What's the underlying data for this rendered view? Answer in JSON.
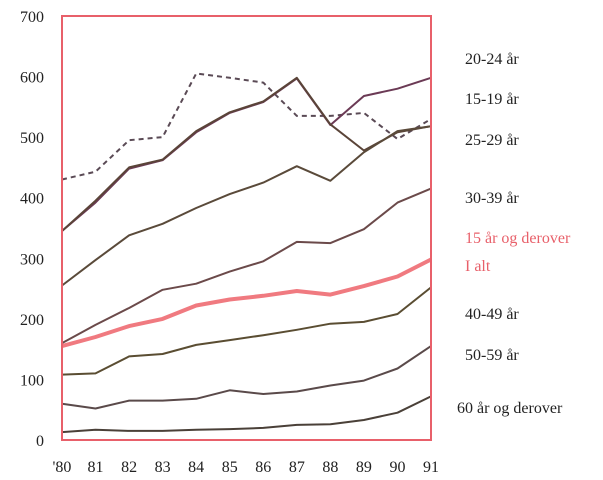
{
  "chart_data": {
    "type": "line",
    "title": "",
    "xlabel": "",
    "ylabel": "",
    "categories": [
      "'80",
      "81",
      "82",
      "83",
      "84",
      "85",
      "86",
      "87",
      "88",
      "89",
      "90",
      "91"
    ],
    "ylim": [
      0,
      700
    ],
    "yticks": [
      0,
      100,
      200,
      300,
      400,
      500,
      600,
      700
    ],
    "grid": false,
    "frame_color": "#e8606a",
    "series": [
      {
        "name": "20-24 år",
        "color": "#5a4a55",
        "dashed": true,
        "values": [
          430,
          443,
          495,
          500,
          605,
          598,
          590,
          535,
          535,
          540,
          497,
          530
        ]
      },
      {
        "name": "15-19 år",
        "color": "#6b3a55",
        "dashed": false,
        "values": [
          345,
          392,
          448,
          462,
          508,
          540,
          558,
          597,
          520,
          568,
          580,
          598
        ]
      },
      {
        "name": "25-29 år",
        "color": "#5a4438",
        "dashed": false,
        "values": [
          345,
          395,
          450,
          463,
          510,
          541,
          559,
          598,
          521,
          478,
          508,
          518
        ]
      },
      {
        "name": "30-39 år",
        "color": "#5a4a3a",
        "dashed": false,
        "values": [
          255,
          297,
          338,
          357,
          383,
          406,
          425,
          452,
          428,
          475,
          510,
          518
        ]
      },
      {
        "name": "15 år og derover",
        "color": "#6b4a4a",
        "dashed": false,
        "values": [
          160,
          190,
          218,
          248,
          258,
          278,
          295,
          327,
          325,
          348,
          392,
          415
        ]
      },
      {
        "name": "I alt",
        "color": "#f07a80",
        "dashed": false,
        "highlight": true,
        "values": [
          155,
          170,
          188,
          200,
          222,
          232,
          238,
          246,
          240,
          254,
          270,
          298
        ]
      },
      {
        "name": "40-49 år",
        "color": "#5a4d32",
        "dashed": false,
        "values": [
          108,
          110,
          138,
          142,
          157,
          165,
          173,
          182,
          192,
          195,
          208,
          252
        ]
      },
      {
        "name": "50-59 år",
        "color": "#5a4a4a",
        "dashed": false,
        "values": [
          60,
          52,
          65,
          65,
          68,
          82,
          76,
          80,
          90,
          98,
          118,
          155
        ]
      },
      {
        "name": "60 år og derover",
        "color": "#4a4038",
        "dashed": false,
        "values": [
          13,
          17,
          15,
          15,
          17,
          18,
          20,
          25,
          26,
          33,
          45,
          72
        ]
      }
    ]
  },
  "legend": [
    {
      "label": "20-24 år"
    },
    {
      "label": "15-19 år"
    },
    {
      "label": "25-29 år"
    },
    {
      "label": "30-39 år"
    },
    {
      "label": "15 år og derover",
      "accent": true
    },
    {
      "label": "I alt",
      "accent": true
    },
    {
      "label": "40-49 år"
    },
    {
      "label": "50-59 år"
    },
    {
      "label": "60 år og derover"
    }
  ]
}
